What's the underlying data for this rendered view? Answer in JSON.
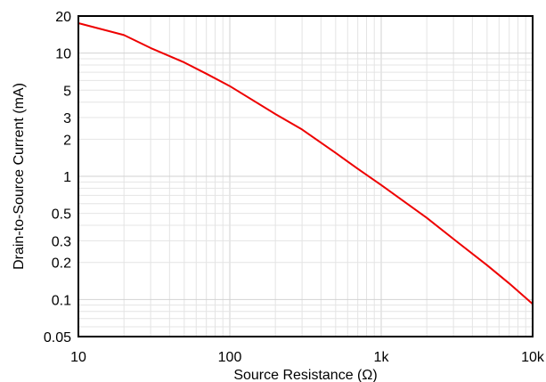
{
  "chart_data": {
    "type": "line",
    "xscale": "log",
    "yscale": "log",
    "xlim": [
      10,
      10000
    ],
    "ylim": [
      0.05,
      20
    ],
    "grid": true,
    "xlabel": "Source Resistance (Ω)",
    "ylabel": "Drain-to-Source Current (mA)",
    "x_ticks": [
      {
        "value": 10,
        "label": "10"
      },
      {
        "value": 100,
        "label": "100"
      },
      {
        "value": 1000,
        "label": "1k"
      },
      {
        "value": 10000,
        "label": "10k"
      }
    ],
    "y_ticks": [
      {
        "value": 20,
        "label": "20"
      },
      {
        "value": 10,
        "label": "10"
      },
      {
        "value": 5,
        "label": "5"
      },
      {
        "value": 3,
        "label": "3"
      },
      {
        "value": 2,
        "label": "2"
      },
      {
        "value": 1,
        "label": "1"
      },
      {
        "value": 0.5,
        "label": "0.5"
      },
      {
        "value": 0.3,
        "label": "0.3"
      },
      {
        "value": 0.2,
        "label": "0.2"
      },
      {
        "value": 0.1,
        "label": "0.1"
      },
      {
        "value": 0.05,
        "label": "0.05"
      }
    ],
    "series": [
      {
        "color": "#ee0000",
        "x": [
          10,
          20,
          30,
          50,
          70,
          100,
          200,
          300,
          500,
          700,
          1000,
          2000,
          3000,
          5000,
          7000,
          10000
        ],
        "y": [
          17.5,
          14,
          11,
          8.4,
          6.8,
          5.4,
          3.2,
          2.4,
          1.55,
          1.15,
          0.85,
          0.46,
          0.31,
          0.19,
          0.135,
          0.092
        ]
      }
    ]
  }
}
